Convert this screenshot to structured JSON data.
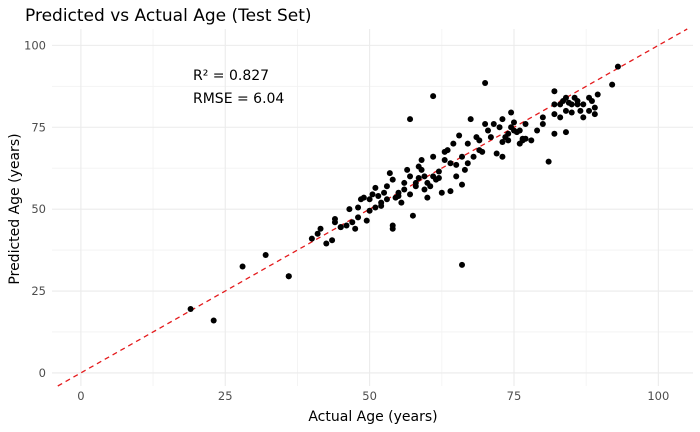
{
  "chart_data": {
    "type": "scatter",
    "title": "Predicted vs Actual Age (Test Set)",
    "xlabel": "Actual Age (years)",
    "ylabel": "Predicted Age (years)",
    "xlim": [
      -5,
      106
    ],
    "ylim": [
      -4,
      105
    ],
    "xticks": [
      0,
      25,
      50,
      75,
      100
    ],
    "yticks": [
      0,
      25,
      50,
      75,
      100
    ],
    "grid": true,
    "annotations": [
      "R² = 0.827",
      "RMSE = 6.04"
    ],
    "reference_line": {
      "label": "y = x",
      "color": "#e41a1c",
      "style": "dashed"
    },
    "point_color": "#000000",
    "points": [
      [
        19,
        19.5
      ],
      [
        23,
        16
      ],
      [
        28,
        32.5
      ],
      [
        32,
        36
      ],
      [
        36,
        29.5
      ],
      [
        40,
        41
      ],
      [
        41,
        42.5
      ],
      [
        41.5,
        44
      ],
      [
        42.5,
        39.5
      ],
      [
        43.5,
        40.5
      ],
      [
        44,
        46
      ],
      [
        44,
        47
      ],
      [
        45,
        44.5
      ],
      [
        46,
        45
      ],
      [
        46.5,
        50
      ],
      [
        47,
        46
      ],
      [
        47.5,
        44
      ],
      [
        48,
        47.5
      ],
      [
        48.5,
        53
      ],
      [
        49,
        53.5
      ],
      [
        49.5,
        46.5
      ],
      [
        50,
        53
      ],
      [
        50,
        49.5
      ],
      [
        50.5,
        54.5
      ],
      [
        51,
        56.5
      ],
      [
        51.5,
        54
      ],
      [
        52,
        52
      ],
      [
        52,
        51
      ],
      [
        52.5,
        55
      ],
      [
        53,
        53
      ],
      [
        53,
        57
      ],
      [
        53.5,
        61
      ],
      [
        54,
        59
      ],
      [
        54,
        44
      ],
      [
        54,
        45
      ],
      [
        54.5,
        53.5
      ],
      [
        55,
        55
      ],
      [
        55,
        54
      ],
      [
        55.5,
        52
      ],
      [
        56,
        56
      ],
      [
        56,
        58
      ],
      [
        56.5,
        62
      ],
      [
        57,
        60
      ],
      [
        57,
        54.5
      ],
      [
        57.5,
        48
      ],
      [
        58,
        58
      ],
      [
        58,
        57
      ],
      [
        58.5,
        59.5
      ],
      [
        58.5,
        63
      ],
      [
        59,
        62
      ],
      [
        59,
        65
      ],
      [
        59.5,
        60
      ],
      [
        59.5,
        56
      ],
      [
        60,
        58
      ],
      [
        60,
        53.5
      ],
      [
        60.5,
        57
      ],
      [
        61,
        60
      ],
      [
        61,
        66
      ],
      [
        61,
        84.5
      ],
      [
        61.5,
        59
      ],
      [
        62,
        61.5
      ],
      [
        62,
        59.5
      ],
      [
        62.5,
        55
      ],
      [
        63,
        65
      ],
      [
        63,
        67.5
      ],
      [
        63.5,
        68
      ],
      [
        64,
        64
      ],
      [
        64,
        55.5
      ],
      [
        64.5,
        70
      ],
      [
        65,
        63.5
      ],
      [
        65,
        60
      ],
      [
        65.5,
        72.5
      ],
      [
        66,
        66
      ],
      [
        66,
        57.5
      ],
      [
        66,
        33
      ],
      [
        66.5,
        62
      ],
      [
        67,
        64
      ],
      [
        67,
        70
      ],
      [
        67.5,
        77.5
      ],
      [
        68,
        66
      ],
      [
        68.5,
        72
      ],
      [
        69,
        71
      ],
      [
        69,
        68
      ],
      [
        69.5,
        67.5
      ],
      [
        70,
        76
      ],
      [
        70,
        88.5
      ],
      [
        70.5,
        74
      ],
      [
        71,
        72
      ],
      [
        71.5,
        76
      ],
      [
        72,
        67
      ],
      [
        72.5,
        75
      ],
      [
        73,
        70.5
      ],
      [
        73,
        66
      ],
      [
        73,
        77.5
      ],
      [
        73.5,
        72
      ],
      [
        74,
        71
      ],
      [
        74,
        73
      ],
      [
        74.5,
        75
      ],
      [
        74.5,
        79.5
      ],
      [
        75,
        74
      ],
      [
        75,
        76.5
      ],
      [
        75.5,
        73.5
      ],
      [
        76,
        74
      ],
      [
        76,
        70
      ],
      [
        76.5,
        71
      ],
      [
        77,
        71.5
      ],
      [
        77,
        76
      ],
      [
        78,
        71
      ],
      [
        79,
        74
      ],
      [
        80,
        78
      ],
      [
        80,
        76
      ],
      [
        81,
        64.5
      ],
      [
        82,
        82
      ],
      [
        82,
        86
      ],
      [
        82,
        79
      ],
      [
        82,
        73
      ],
      [
        83,
        78
      ],
      [
        83,
        82
      ],
      [
        83.5,
        83
      ],
      [
        84,
        80
      ],
      [
        84,
        84
      ],
      [
        84,
        73.5
      ],
      [
        84.5,
        82.5
      ],
      [
        85,
        82
      ],
      [
        85,
        79.5
      ],
      [
        85.5,
        84
      ],
      [
        86,
        82
      ],
      [
        86.5,
        80
      ],
      [
        87,
        78
      ],
      [
        87,
        82
      ],
      [
        88,
        84
      ],
      [
        88,
        80
      ],
      [
        88.5,
        83
      ],
      [
        89,
        81
      ],
      [
        89,
        79
      ],
      [
        89.5,
        85
      ],
      [
        92,
        88
      ],
      [
        93,
        93.5
      ],
      [
        36,
        29.5
      ],
      [
        57,
        77.5
      ],
      [
        45,
        44.5
      ],
      [
        48,
        50.5
      ],
      [
        51,
        50.5
      ],
      [
        86,
        83
      ],
      [
        76.5,
        71.5
      ]
    ]
  }
}
